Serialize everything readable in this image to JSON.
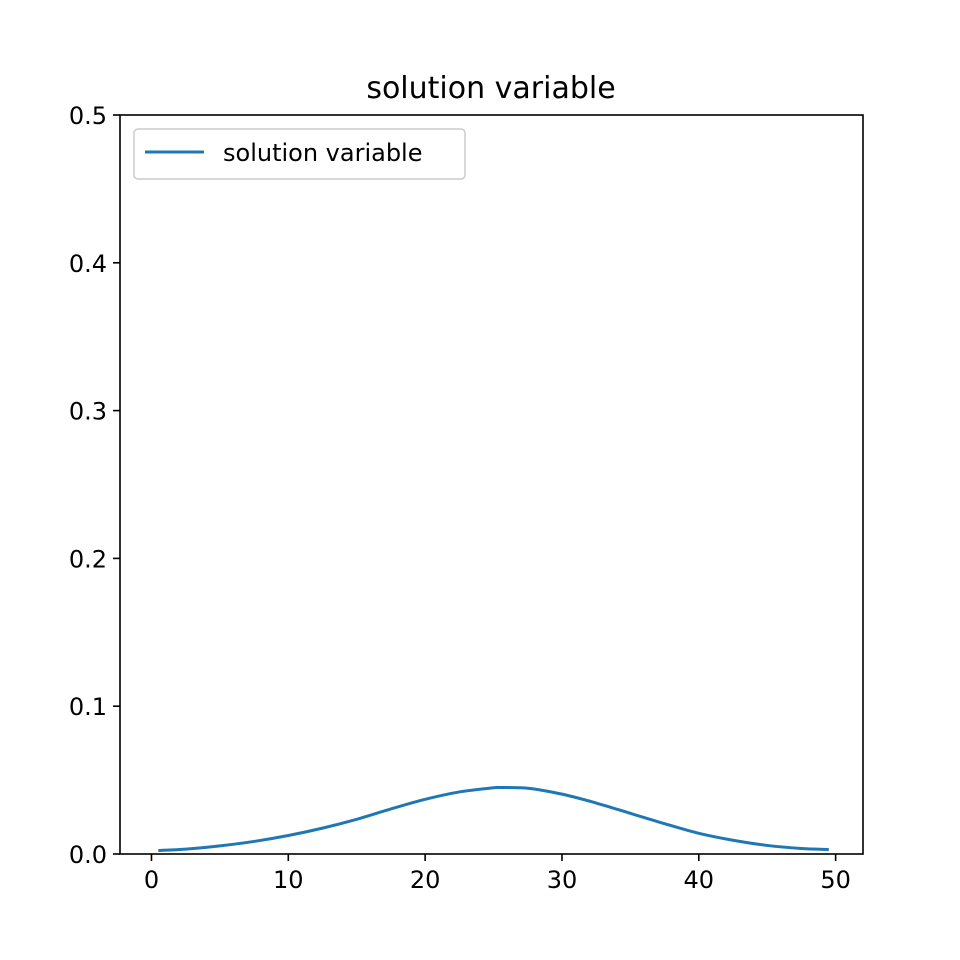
{
  "chart_data": {
    "type": "line",
    "title": "solution variable",
    "xlabel": "",
    "ylabel": "",
    "xlim": [
      -2.3,
      52.0
    ],
    "ylim": [
      0.0,
      0.5
    ],
    "x_ticks": [
      0,
      10,
      20,
      30,
      40,
      50
    ],
    "y_ticks": [
      0.0,
      0.1,
      0.2,
      0.3,
      0.4,
      0.5
    ],
    "x_tick_labels": [
      "0",
      "10",
      "20",
      "30",
      "40",
      "50"
    ],
    "y_tick_labels": [
      "0.0",
      "0.1",
      "0.2",
      "0.3",
      "0.4",
      "0.5"
    ],
    "grid": false,
    "legend": {
      "position": "top-left"
    },
    "series": [
      {
        "name": "solution variable",
        "color": "#1f77b4",
        "x": [
          0.5,
          2.5,
          5,
          7.5,
          10,
          12.5,
          15,
          17.5,
          20,
          22.5,
          25,
          25.5,
          27.5,
          30,
          32.5,
          35,
          37.5,
          40,
          42.5,
          45,
          47.5,
          49.5
        ],
        "y": [
          0.0024,
          0.0033,
          0.0055,
          0.0085,
          0.0125,
          0.0175,
          0.0235,
          0.0305,
          0.037,
          0.042,
          0.0448,
          0.045,
          0.0445,
          0.0405,
          0.0345,
          0.0275,
          0.0205,
          0.014,
          0.0093,
          0.0058,
          0.0037,
          0.003
        ]
      }
    ]
  }
}
